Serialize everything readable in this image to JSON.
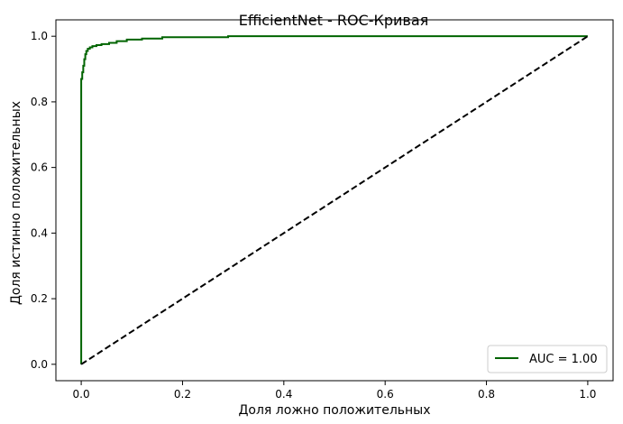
{
  "chart_data": {
    "type": "line",
    "title": "EfficientNet - ROC-Кривая",
    "xlabel": "Доля ложно положительных",
    "ylabel": "Доля истинно положительных",
    "xlim": [
      -0.05,
      1.05
    ],
    "ylim": [
      -0.05,
      1.05
    ],
    "xticks": [
      0.0,
      0.2,
      0.4,
      0.6,
      0.8,
      1.0
    ],
    "xtick_labels": [
      "0.0",
      "0.2",
      "0.4",
      "0.6",
      "0.8",
      "1.0"
    ],
    "yticks": [
      0.0,
      0.2,
      0.4,
      0.6,
      0.8,
      1.0
    ],
    "ytick_labels": [
      "0.0",
      "0.2",
      "0.4",
      "0.6",
      "0.8",
      "1.0"
    ],
    "grid": false,
    "legend_position": "lower-right",
    "series": [
      {
        "name": "AUC = 1.00",
        "color": "#006400",
        "style": "solid",
        "x": [
          0.0,
          0.0,
          0.002,
          0.002,
          0.004,
          0.004,
          0.006,
          0.006,
          0.008,
          0.008,
          0.01,
          0.01,
          0.013,
          0.013,
          0.017,
          0.017,
          0.022,
          0.022,
          0.03,
          0.03,
          0.04,
          0.04,
          0.055,
          0.055,
          0.07,
          0.07,
          0.09,
          0.09,
          0.12,
          0.12,
          0.16,
          0.16,
          0.29,
          0.29,
          1.0
        ],
        "y": [
          0.0,
          0.87,
          0.87,
          0.89,
          0.89,
          0.91,
          0.91,
          0.93,
          0.93,
          0.945,
          0.945,
          0.955,
          0.955,
          0.962,
          0.962,
          0.966,
          0.966,
          0.97,
          0.97,
          0.973,
          0.973,
          0.976,
          0.976,
          0.98,
          0.98,
          0.985,
          0.985,
          0.99,
          0.99,
          0.993,
          0.993,
          0.997,
          0.997,
          1.0,
          1.0
        ]
      },
      {
        "name": "",
        "color": "#000000",
        "style": "dashed",
        "x": [
          0.0,
          1.0
        ],
        "y": [
          0.0,
          1.0
        ]
      }
    ]
  }
}
